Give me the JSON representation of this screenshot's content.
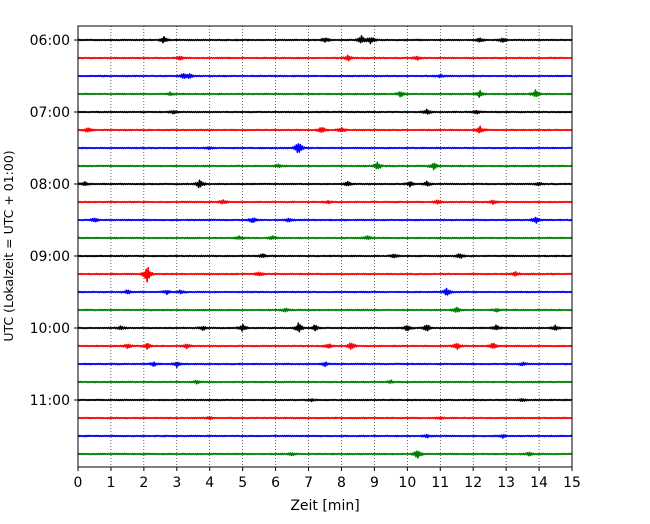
{
  "chart_data": {
    "type": "line",
    "title": "",
    "xlabel": "Zeit  [min]",
    "ylabel": "UTC (Lokalzeit = UTC + 01:00)",
    "xlim": [
      0,
      15
    ],
    "xticks": [
      0,
      1,
      2,
      3,
      4,
      5,
      6,
      7,
      8,
      9,
      10,
      11,
      12,
      13,
      14,
      15
    ],
    "ytick_labels": [
      "06:00",
      "07:00",
      "08:00",
      "09:00",
      "10:00",
      "11:00"
    ],
    "grid": "vertical dotted at each minute",
    "colors": [
      "#000000",
      "#ff0000",
      "#0000ff",
      "#008000"
    ],
    "traces": [
      {
        "start": "06:00",
        "color": "#000000",
        "events": [
          [
            2.6,
            1.0
          ],
          [
            7.5,
            1.0
          ],
          [
            8.6,
            1.5
          ],
          [
            8.9,
            1.2
          ],
          [
            12.2,
            0.8
          ],
          [
            12.9,
            0.8
          ]
        ]
      },
      {
        "start": "06:15",
        "color": "#ff0000",
        "events": [
          [
            3.1,
            0.6
          ],
          [
            8.2,
            1.0
          ],
          [
            10.3,
            0.6
          ]
        ]
      },
      {
        "start": "06:30",
        "color": "#0000ff",
        "events": [
          [
            3.2,
            0.8
          ],
          [
            3.4,
            0.8
          ],
          [
            11.0,
            0.5
          ]
        ]
      },
      {
        "start": "06:45",
        "color": "#008000",
        "events": [
          [
            2.8,
            0.5
          ],
          [
            9.8,
            0.9
          ],
          [
            12.2,
            1.2
          ],
          [
            13.9,
            1.4
          ]
        ]
      },
      {
        "start": "07:00",
        "color": "#000000",
        "events": [
          [
            2.9,
            0.6
          ],
          [
            10.6,
            0.8
          ],
          [
            12.1,
            0.7
          ]
        ]
      },
      {
        "start": "07:15",
        "color": "#ff0000",
        "events": [
          [
            0.3,
            0.8
          ],
          [
            7.4,
            1.2
          ],
          [
            8.0,
            0.9
          ],
          [
            12.2,
            1.2
          ]
        ]
      },
      {
        "start": "07:30",
        "color": "#0000ff",
        "events": [
          [
            6.7,
            2.5
          ],
          [
            4.0,
            0.5
          ]
        ]
      },
      {
        "start": "07:45",
        "color": "#008000",
        "events": [
          [
            9.1,
            1.3
          ],
          [
            10.8,
            1.2
          ],
          [
            6.1,
            0.5
          ]
        ]
      },
      {
        "start": "08:00",
        "color": "#000000",
        "events": [
          [
            3.7,
            1.5
          ],
          [
            0.2,
            0.6
          ],
          [
            8.2,
            0.7
          ],
          [
            10.1,
            0.9
          ],
          [
            10.6,
            0.8
          ],
          [
            14.0,
            0.5
          ]
        ]
      },
      {
        "start": "08:15",
        "color": "#ff0000",
        "events": [
          [
            4.4,
            0.8
          ],
          [
            10.9,
            0.6
          ],
          [
            12.6,
            0.6
          ],
          [
            7.6,
            0.5
          ]
        ]
      },
      {
        "start": "08:30",
        "color": "#0000ff",
        "events": [
          [
            0.5,
            0.9
          ],
          [
            5.3,
            0.9
          ],
          [
            6.4,
            0.7
          ],
          [
            13.9,
            1.1
          ]
        ]
      },
      {
        "start": "08:45",
        "color": "#008000",
        "events": [
          [
            8.8,
            0.7
          ],
          [
            5.9,
            0.6
          ],
          [
            4.9,
            0.6
          ]
        ]
      },
      {
        "start": "09:00",
        "color": "#000000",
        "events": [
          [
            5.6,
            0.7
          ],
          [
            11.6,
            0.9
          ],
          [
            9.6,
            0.6
          ]
        ]
      },
      {
        "start": "09:15",
        "color": "#ff0000",
        "events": [
          [
            2.1,
            3.3
          ],
          [
            5.5,
            0.8
          ],
          [
            13.3,
            0.7
          ]
        ]
      },
      {
        "start": "09:30",
        "color": "#0000ff",
        "events": [
          [
            1.5,
            0.7
          ],
          [
            2.7,
            0.6
          ],
          [
            3.1,
            0.6
          ],
          [
            11.2,
            1.3
          ]
        ]
      },
      {
        "start": "09:45",
        "color": "#008000",
        "events": [
          [
            11.5,
            1.1
          ],
          [
            6.3,
            0.6
          ],
          [
            12.7,
            0.5
          ]
        ]
      },
      {
        "start": "10:00",
        "color": "#000000",
        "events": [
          [
            1.3,
            0.8
          ],
          [
            3.8,
            0.7
          ],
          [
            5.0,
            1.1
          ],
          [
            6.7,
            1.6
          ],
          [
            7.2,
            1.0
          ],
          [
            10.0,
            1.0
          ],
          [
            10.6,
            1.4
          ],
          [
            12.7,
            0.9
          ],
          [
            14.5,
            0.9
          ]
        ]
      },
      {
        "start": "10:15",
        "color": "#ff0000",
        "events": [
          [
            1.5,
            0.8
          ],
          [
            2.1,
            0.9
          ],
          [
            3.3,
            0.9
          ],
          [
            8.3,
            1.4
          ],
          [
            11.5,
            1.2
          ],
          [
            12.6,
            1.1
          ],
          [
            7.6,
            0.8
          ]
        ]
      },
      {
        "start": "10:30",
        "color": "#0000ff",
        "events": [
          [
            2.3,
            0.7
          ],
          [
            3.0,
            0.9
          ],
          [
            7.5,
            0.6
          ],
          [
            13.5,
            0.6
          ]
        ]
      },
      {
        "start": "10:45",
        "color": "#008000",
        "events": [
          [
            3.6,
            0.5
          ],
          [
            9.5,
            0.5
          ]
        ]
      },
      {
        "start": "11:00",
        "color": "#000000",
        "events": [
          [
            7.1,
            0.4
          ],
          [
            13.5,
            0.4
          ]
        ]
      },
      {
        "start": "11:15",
        "color": "#ff0000",
        "events": [
          [
            4.0,
            0.4
          ],
          [
            11.0,
            0.4
          ]
        ]
      },
      {
        "start": "11:30",
        "color": "#0000ff",
        "events": [
          [
            10.6,
            0.6
          ],
          [
            12.9,
            0.5
          ]
        ]
      },
      {
        "start": "11:45",
        "color": "#008000",
        "events": [
          [
            10.3,
            1.6
          ],
          [
            6.5,
            0.5
          ],
          [
            13.7,
            0.5
          ]
        ]
      }
    ]
  }
}
